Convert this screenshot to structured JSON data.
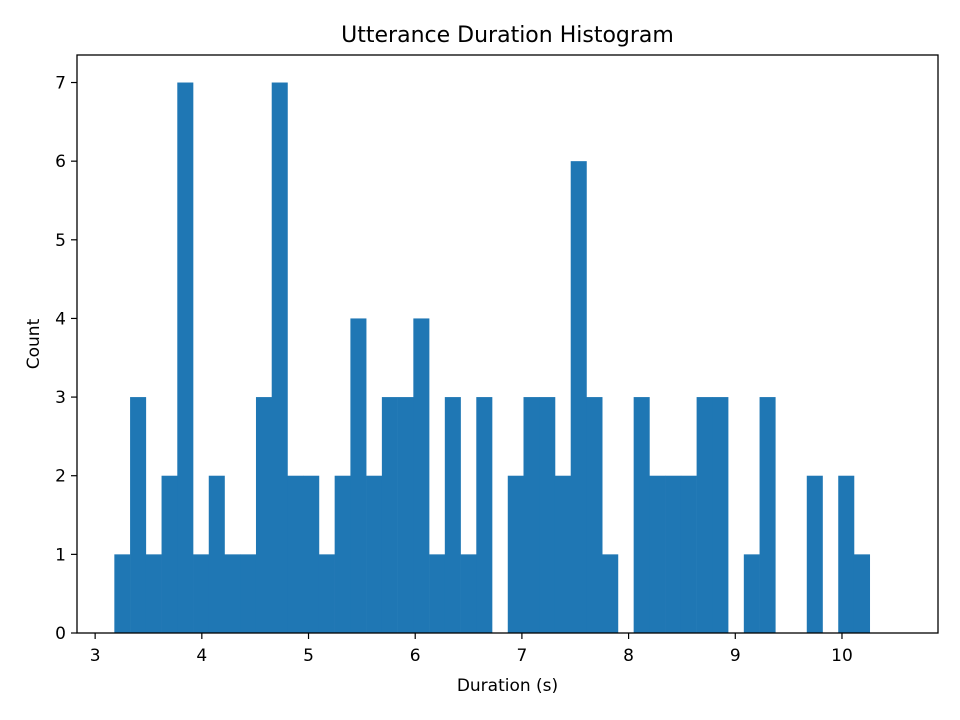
{
  "chart_data": {
    "type": "bar",
    "title": "Utterance Duration Histogram",
    "xlabel": "Duration (s)",
    "ylabel": "Count",
    "xlim": [
      2.83,
      10.9
    ],
    "ylim": [
      0,
      7.35
    ],
    "xticks": [
      3,
      4,
      5,
      6,
      7,
      8,
      9,
      10
    ],
    "yticks": [
      0,
      1,
      2,
      3,
      4,
      5,
      6,
      7
    ],
    "bin_start": 3.18,
    "bin_width": 0.1475,
    "counts": [
      1,
      3,
      1,
      2,
      7,
      1,
      2,
      1,
      1,
      3,
      7,
      2,
      2,
      1,
      2,
      4,
      2,
      3,
      3,
      4,
      1,
      3,
      1,
      3,
      0,
      2,
      3,
      3,
      2,
      6,
      3,
      1,
      0,
      3,
      2,
      2,
      2,
      3,
      3,
      0,
      1,
      3,
      0,
      0,
      2,
      0,
      2,
      1
    ],
    "bar_color": "#1f77b4",
    "grid": false,
    "legend": null
  }
}
